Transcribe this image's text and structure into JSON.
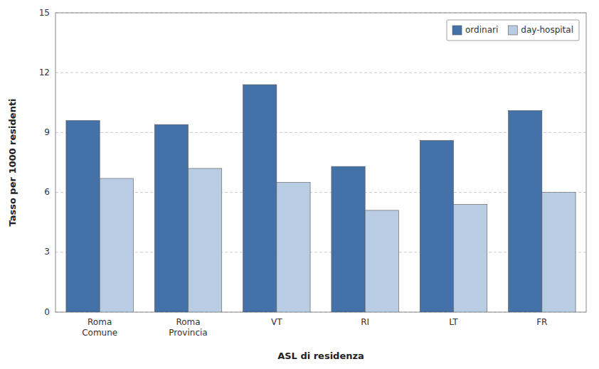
{
  "chart_data": {
    "type": "bar",
    "categories": [
      "Roma\nComune",
      "Roma\nProvincia",
      "VT",
      "RI",
      "LT",
      "FR"
    ],
    "series": [
      {
        "name": "ordinari",
        "color": "#4472A8",
        "values": [
          9.6,
          9.4,
          11.4,
          7.3,
          8.6,
          10.1
        ]
      },
      {
        "name": "day-hospital",
        "color": "#B8CCE4",
        "values": [
          6.7,
          7.2,
          6.5,
          5.1,
          5.4,
          6.0
        ]
      }
    ],
    "xlabel": "ASL di residenza",
    "ylabel": "Tasso per 1000 residenti",
    "ylim": [
      0,
      15
    ],
    "yticks": [
      0,
      3,
      6,
      9,
      12,
      15
    ],
    "grid": true,
    "legend": "upper right"
  }
}
